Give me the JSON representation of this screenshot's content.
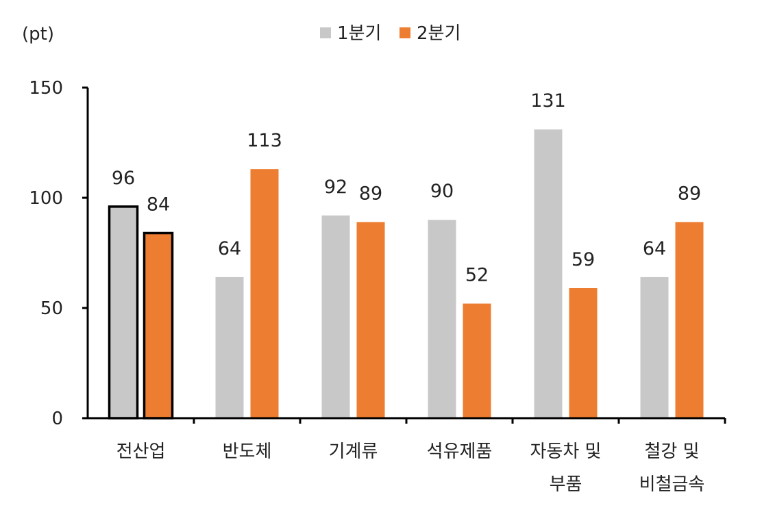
{
  "chart_data": {
    "type": "bar",
    "unit_label": "(pt)",
    "categories": [
      [
        "전산업"
      ],
      [
        "반도체"
      ],
      [
        "기계류"
      ],
      [
        "석유제품"
      ],
      [
        "자동차 및",
        "부품"
      ],
      [
        "철강 및",
        "비철금속"
      ]
    ],
    "series": [
      {
        "name": "1분기",
        "color": "#c8c8c8",
        "values": [
          96,
          64,
          92,
          90,
          131,
          64
        ]
      },
      {
        "name": "2분기",
        "color": "#ed7d31",
        "values": [
          84,
          113,
          89,
          52,
          59,
          89
        ]
      }
    ],
    "ylim": [
      0,
      150
    ],
    "yticks": [
      0,
      50,
      100,
      150
    ],
    "highlighted_category": "전산업",
    "legend_position": "top-center",
    "grid": false
  }
}
